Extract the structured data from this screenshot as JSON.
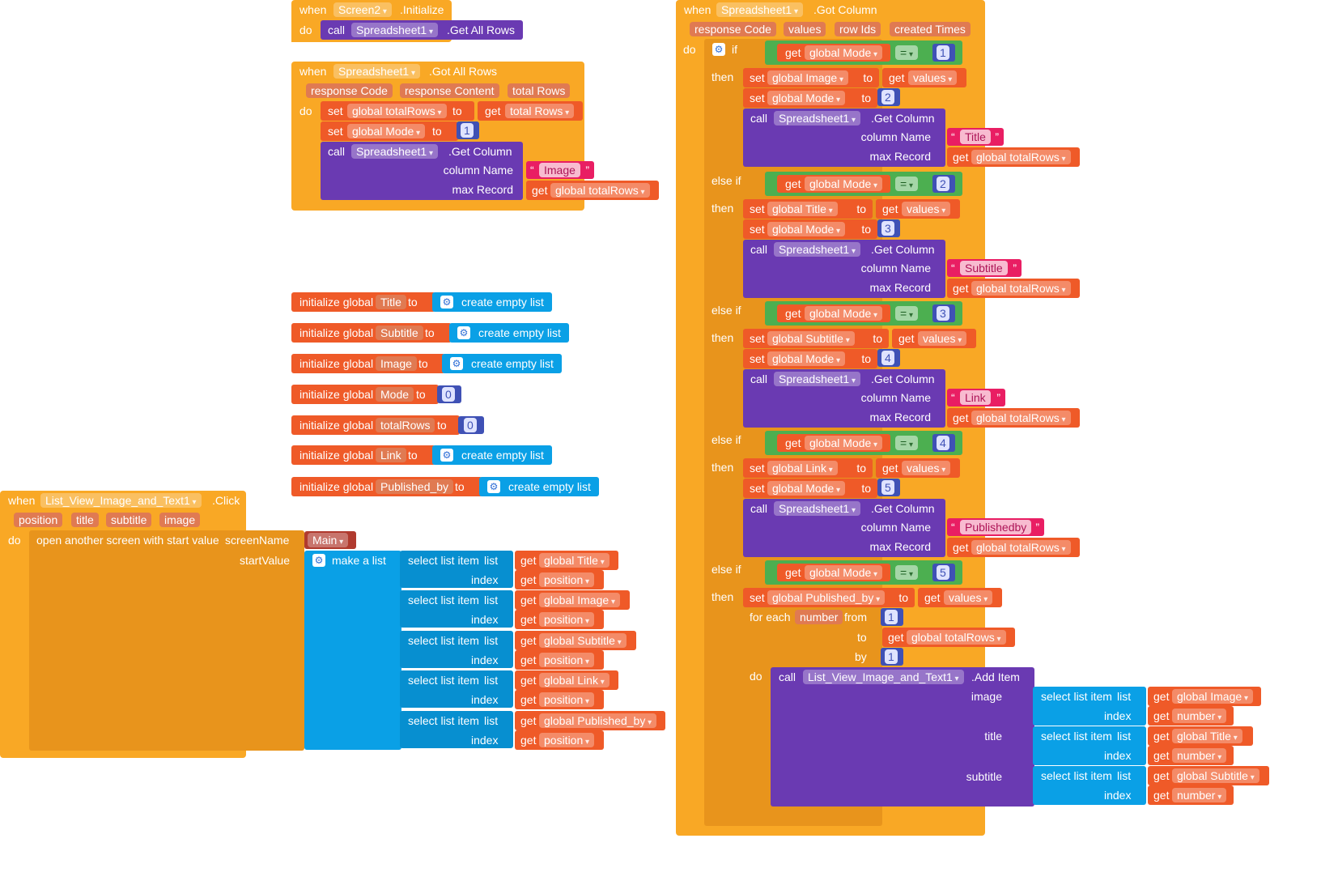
{
  "screen2_initialize": {
    "when": "when",
    "component": "Screen2",
    "event": ".Initialize",
    "do": "do",
    "call": "call",
    "call_component": "Spreadsheet1",
    "call_method": ".Get All Rows"
  },
  "got_all_rows": {
    "when": "when",
    "component": "Spreadsheet1",
    "event": ".Got All Rows",
    "params": [
      "response Code",
      "response Content",
      "total Rows"
    ],
    "do": "do",
    "set1_var": "global totalRows",
    "set1_get": "total Rows",
    "set2_var": "global Mode",
    "set2_value": "1",
    "call_component": "Spreadsheet1",
    "call_method": ".Get Column",
    "column_name_label": "column Name",
    "column_name_value": "Image",
    "max_record_label": "max Record",
    "max_record_get": "global totalRows"
  },
  "globals": [
    {
      "label": "initialize global",
      "name": "Title",
      "to": "to",
      "value": "create empty list"
    },
    {
      "label": "initialize global",
      "name": "Subtitle",
      "to": "to",
      "value": "create empty list"
    },
    {
      "label": "initialize global",
      "name": "Image",
      "to": "to",
      "value": "create empty list"
    },
    {
      "label": "initialize global",
      "name": "Mode",
      "to": "to",
      "value": "0"
    },
    {
      "label": "initialize global",
      "name": "totalRows",
      "to": "to",
      "value": "0"
    },
    {
      "label": "initialize global",
      "name": "Link",
      "to": "to",
      "value": "create empty list"
    },
    {
      "label": "initialize global",
      "name": "Published_by",
      "to": "to",
      "value": "create empty list"
    }
  ],
  "list_click": {
    "when": "when",
    "component": "List_View_Image_and_Text1",
    "event": ".Click",
    "params": [
      "position",
      "title",
      "subtitle",
      "image"
    ],
    "do": "do",
    "open_screen": "open another screen with start value",
    "screen_name_label": "screenName",
    "screen_name_value": "Main",
    "start_value_label": "startValue",
    "make_list": "make a list",
    "items": [
      {
        "select": "select list item",
        "list": "list",
        "list_get": "global Title",
        "index": "index",
        "index_get": "position"
      },
      {
        "select": "select list item",
        "list": "list",
        "list_get": "global Image",
        "index": "index",
        "index_get": "position"
      },
      {
        "select": "select list item",
        "list": "list",
        "list_get": "global Subtitle",
        "index": "index",
        "index_get": "position"
      },
      {
        "select": "select list item",
        "list": "list",
        "list_get": "global Link",
        "index": "index",
        "index_get": "position"
      },
      {
        "select": "select list item",
        "list": "list",
        "list_get": "global Published_by",
        "index": "index",
        "index_get": "position"
      }
    ]
  },
  "got_column": {
    "when": "when",
    "component": "Spreadsheet1",
    "event": ".Got Column",
    "params": [
      "response Code",
      "values",
      "row Ids",
      "created Times"
    ],
    "do": "do",
    "if_label": "if",
    "else_if_label": "else if",
    "then_label": "then",
    "get": "get",
    "set": "set",
    "to": "to",
    "call": "call",
    "mode_var": "global Mode",
    "eq": "=",
    "values": "values",
    "column_name_label": "column Name",
    "max_record_label": "max Record",
    "total_rows": "global totalRows",
    "call_component": "Spreadsheet1",
    "call_method": ".Get Column",
    "branches": [
      {
        "cmp": "1",
        "set_var": "global Image",
        "next_mode": "2",
        "column": "Title"
      },
      {
        "cmp": "2",
        "set_var": "global Title",
        "next_mode": "3",
        "column": "Subtitle"
      },
      {
        "cmp": "3",
        "set_var": "global Subtitle",
        "next_mode": "4",
        "column": "Link"
      },
      {
        "cmp": "4",
        "set_var": "global Link",
        "next_mode": "5",
        "column": "Publishedby"
      }
    ],
    "last_branch": {
      "cmp": "5",
      "set_var": "global Published_by",
      "for_each": "for each",
      "loop_var": "number",
      "from": "from",
      "from_value": "1",
      "to_get": "global totalRows",
      "by": "by",
      "by_value": "1",
      "do": "do",
      "add_component": "List_View_Image_and_Text1",
      "add_method": ".Add Item",
      "image_label": "image",
      "title_label": "title",
      "subtitle_label": "subtitle",
      "select": "select list item",
      "list": "list",
      "index": "index",
      "image_list": "global Image",
      "title_list": "global Title",
      "subtitle_list": "global Subtitle",
      "index_get": "number"
    }
  }
}
